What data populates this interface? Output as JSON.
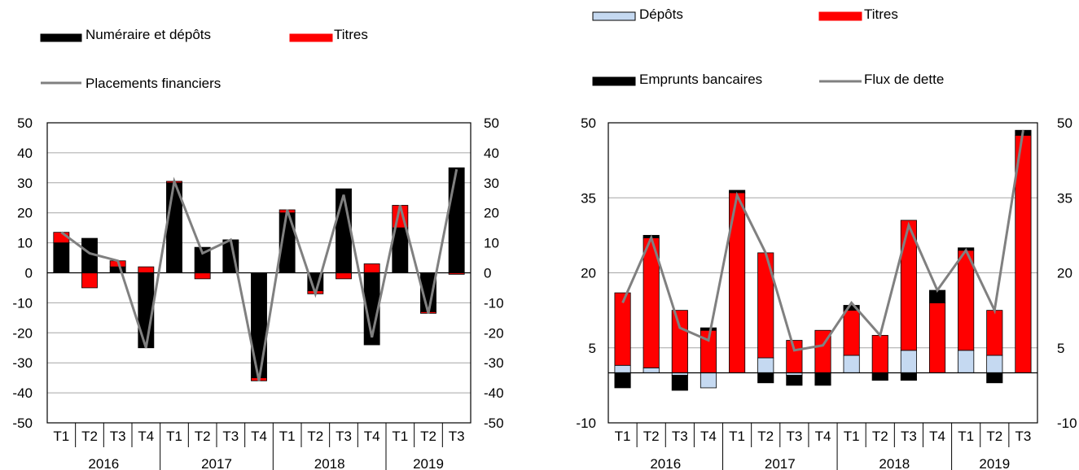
{
  "chart_data": [
    {
      "type": "bar",
      "stacked": true,
      "categories": [
        "T1",
        "T2",
        "T3",
        "T4",
        "T1",
        "T2",
        "T3",
        "T4",
        "T1",
        "T2",
        "T3",
        "T4",
        "T1",
        "T2",
        "T3"
      ],
      "years": [
        "2016",
        "2017",
        "2018",
        "2019"
      ],
      "ylim": [
        -50,
        50
      ],
      "yticks": [
        -50,
        -40,
        -30,
        -20,
        -10,
        0,
        10,
        20,
        30,
        40,
        50
      ],
      "grid": true,
      "legend_position": "top-left",
      "series": [
        {
          "name": "Numéraire et dépôts",
          "kind": "bar",
          "color": "#000000",
          "values": [
            10,
            11.5,
            2,
            -25,
            30,
            8.5,
            11,
            -35,
            20,
            -6,
            28,
            -24,
            15,
            -13,
            35
          ]
        },
        {
          "name": "Titres",
          "kind": "bar",
          "color": "#ff0000",
          "values": [
            3.5,
            -5,
            2,
            2,
            0.5,
            -2,
            0,
            -1,
            1,
            -1,
            -2,
            3,
            7.5,
            -0.5,
            -0.5
          ]
        },
        {
          "name": "Placements financiers",
          "kind": "line",
          "color": "#808080",
          "values": [
            13.5,
            6.5,
            4,
            -25,
            30.5,
            6.5,
            11,
            -36,
            21,
            -7,
            26,
            -21.5,
            22.5,
            -13.5,
            34.5
          ]
        }
      ]
    },
    {
      "type": "bar",
      "stacked": true,
      "categories": [
        "T1",
        "T2",
        "T3",
        "T4",
        "T1",
        "T2",
        "T3",
        "T4",
        "T1",
        "T2",
        "T3",
        "T4",
        "T1",
        "T2",
        "T3"
      ],
      "years": [
        "2016",
        "2017",
        "2018",
        "2019"
      ],
      "ylim": [
        -10,
        50
      ],
      "yticks": [
        -10,
        5,
        20,
        35,
        50
      ],
      "grid": true,
      "legend_position": "top",
      "series": [
        {
          "name": "Dépôts",
          "kind": "bar",
          "color": "#c5d9f1",
          "values": [
            1.5,
            1,
            -0.5,
            -3,
            0,
            3,
            -0.5,
            0,
            3.5,
            0,
            4.5,
            0,
            4.5,
            3.5,
            0
          ]
        },
        {
          "name": "Titres",
          "kind": "bar",
          "color": "#ff0000",
          "values": [
            14.5,
            26,
            12.5,
            8.5,
            36,
            21,
            6.5,
            8.5,
            9,
            7.5,
            26,
            14,
            20,
            9,
            47.5
          ]
        },
        {
          "name": "Emprunts bancaires",
          "kind": "bar",
          "color": "#000000",
          "values": [
            -3,
            0.5,
            -3,
            0.5,
            0.5,
            -2,
            -2,
            -2.5,
            1,
            -1.5,
            -1.5,
            2.5,
            0.5,
            -2,
            1
          ]
        },
        {
          "name": "Flux de dette",
          "kind": "line",
          "color": "#808080",
          "values": [
            14,
            27,
            9,
            6.5,
            35.5,
            24,
            4.5,
            5.5,
            14,
            7.5,
            29.5,
            16.5,
            24.5,
            12.5,
            48.5
          ]
        }
      ]
    }
  ]
}
